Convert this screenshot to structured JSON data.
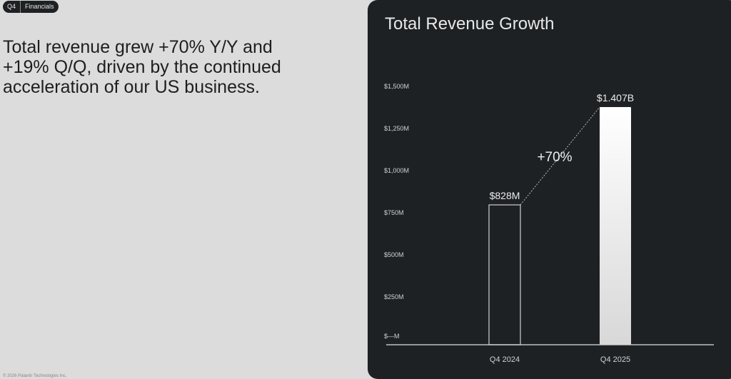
{
  "header": {
    "tag_left": "Q4",
    "tag_right": "Financials"
  },
  "headline": "Total revenue grew +70% Y/Y and +19% Q/Q, driven by the continued acceleration of our US business.",
  "footer": "© 2026 Palantir Technologies Inc.",
  "colors": {
    "panel": "#1e2124",
    "page": "#dcdcdc"
  },
  "chart_data": {
    "type": "bar",
    "title": "Total Revenue Growth",
    "categories": [
      "Q4 2024",
      "Q4 2025"
    ],
    "values": [
      828,
      1407
    ],
    "data_labels": [
      "$828M",
      "$1.407B"
    ],
    "annotation": "+70%",
    "ylim": [
      0,
      1500
    ],
    "yticks": [
      0,
      250,
      500,
      750,
      1000,
      1250,
      1500
    ],
    "ytick_labels": [
      "$—M",
      "$250M",
      "$500M",
      "$750M",
      "$1,000M",
      "$1,250M",
      "$1,500M"
    ],
    "xlabel": "",
    "ylabel": "",
    "grid": false
  }
}
